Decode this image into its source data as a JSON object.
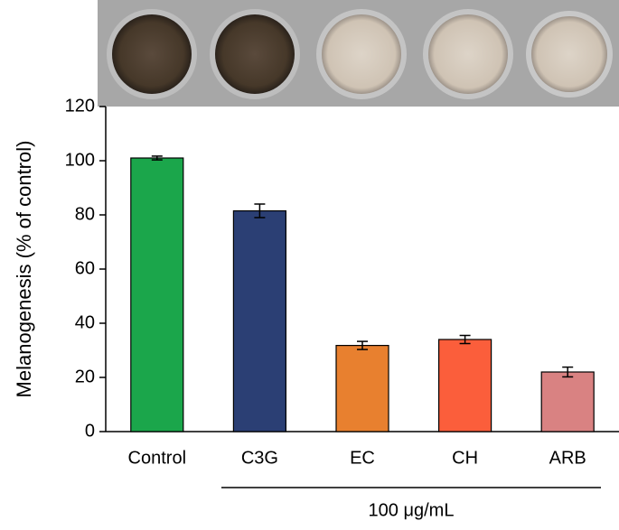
{
  "chart_data": {
    "type": "bar",
    "y_label": "Melanogenesis (% of control)",
    "categories": [
      "Control",
      "C3G",
      "EC",
      "CH",
      "ARB"
    ],
    "values": [
      101,
      81.5,
      31.8,
      34,
      22
    ],
    "errors": [
      0.7,
      2.5,
      1.5,
      1.5,
      1.8
    ],
    "colors": [
      "#1ba64b",
      "#2b3f74",
      "#e8802f",
      "#fb5e3b",
      "#d98282"
    ],
    "ylim": [
      0,
      120
    ],
    "yticks": [
      0,
      20,
      40,
      60,
      80,
      100,
      120
    ],
    "annotation": "100 μg/mL"
  }
}
